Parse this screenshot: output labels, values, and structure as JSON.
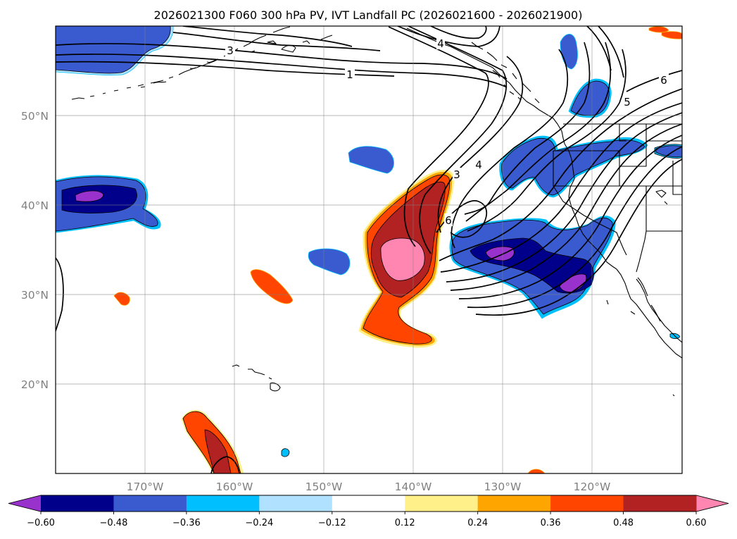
{
  "chart_data": {
    "type": "heatmap",
    "title": "2026021300 F060 300 hPa PV, IVT Landfall PC (2026021600 - 2026021900)",
    "xlabel": "",
    "ylabel": "",
    "x_ticks": [
      "170°W",
      "160°W",
      "150°W",
      "140°W",
      "130°W",
      "120°W"
    ],
    "y_ticks": [
      "20°N",
      "30°N",
      "40°N",
      "50°N"
    ],
    "lon_range": [
      -180,
      -110
    ],
    "lat_range": [
      10,
      60
    ],
    "grid": true,
    "map_features": [
      "coastlines",
      "country borders",
      "US state borders"
    ],
    "shading_variable": "IVT Landfall PC",
    "contour_variable": "300 hPa PV",
    "contour_labels": [
      "1",
      "3",
      "4",
      "5",
      "6"
    ],
    "colorbar": {
      "orientation": "horizontal",
      "extend": "both",
      "ticks": [
        "−0.60",
        "−0.48",
        "−0.36",
        "−0.24",
        "−0.12",
        "0.12",
        "0.24",
        "0.36",
        "0.48",
        "0.60"
      ],
      "levels": [
        -0.6,
        -0.48,
        -0.36,
        -0.24,
        -0.12,
        0.12,
        0.24,
        0.36,
        0.48,
        0.6
      ],
      "colors": [
        "#9932cc",
        "#00008b",
        "#3a5bd0",
        "#00bfff",
        "#b0e2ff",
        "#ffffff",
        "#fff08a",
        "#ffa500",
        "#ff4500",
        "#b22222",
        "#ff86b0"
      ]
    }
  }
}
